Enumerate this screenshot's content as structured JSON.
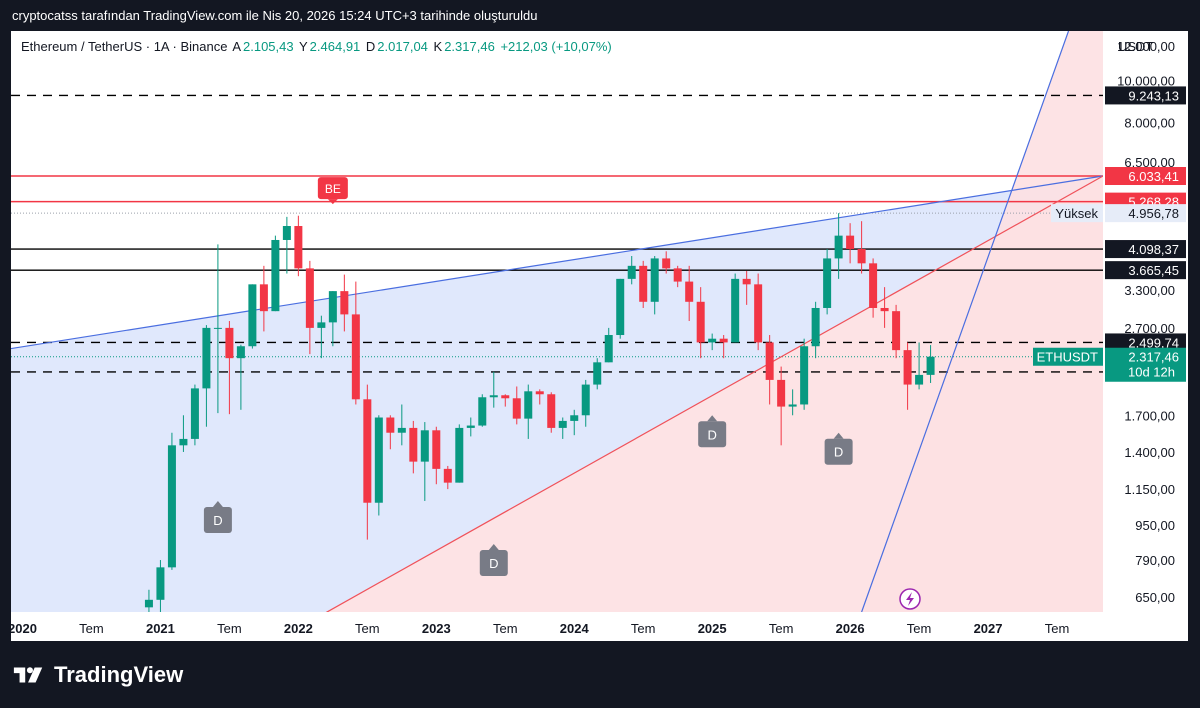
{
  "header": {
    "caption": "cryptocatss tarafından TradingView.com ile Nis 20, 2026 15:24 UTC+3 tarihinde oluşturuldu"
  },
  "legend": {
    "symbol": "Ethereum / TetherUS · 1A · Binance",
    "open_label": "A",
    "open": "2.105,43",
    "high_label": "Y",
    "high": "2.464,91",
    "low_label": "D",
    "low": "2.017,04",
    "close_label": "K",
    "close": "2.317,46",
    "change": "+212,03 (+10,07%)"
  },
  "footer": {
    "brand": "TradingView"
  },
  "colors": {
    "up": "#089981",
    "down": "#f23645",
    "channel_fill": "#dbe4fb",
    "wedge_fill": "#fde0e2",
    "blue_line": "#4a6ee0",
    "red_line": "#f0525a"
  },
  "chart_data": {
    "type": "candlestick",
    "currency": "USDT",
    "scale": "log",
    "ylim": [
      600,
      13000
    ],
    "y_ticks": [
      {
        "v": 12000,
        "label": "12.000,00"
      },
      {
        "v": 10000,
        "label": "10.000,00"
      },
      {
        "v": 8000,
        "label": "8.000,00"
      },
      {
        "v": 6500,
        "label": "6.500,00"
      },
      {
        "v": 3300,
        "label": "3.300,00"
      },
      {
        "v": 2700,
        "label": "2.700,00"
      },
      {
        "v": 1700,
        "label": "1.700,00"
      },
      {
        "v": 1400,
        "label": "1.400,00"
      },
      {
        "v": 1150,
        "label": "1.150,00"
      },
      {
        "v": 950,
        "label": "950,00"
      },
      {
        "v": 790,
        "label": "790,00"
      },
      {
        "v": 650,
        "label": "650,00"
      }
    ],
    "x_ticks": [
      {
        "t": "2020-01",
        "label": "2020"
      },
      {
        "t": "2020-07",
        "label": "Tem"
      },
      {
        "t": "2021-01",
        "label": "2021"
      },
      {
        "t": "2021-07",
        "label": "Tem"
      },
      {
        "t": "2022-01",
        "label": "2022"
      },
      {
        "t": "2022-07",
        "label": "Tem"
      },
      {
        "t": "2023-01",
        "label": "2023"
      },
      {
        "t": "2023-07",
        "label": "Tem"
      },
      {
        "t": "2024-01",
        "label": "2024"
      },
      {
        "t": "2024-07",
        "label": "Tem"
      },
      {
        "t": "2025-01",
        "label": "2025"
      },
      {
        "t": "2025-07",
        "label": "Tem"
      },
      {
        "t": "2026-01",
        "label": "2026"
      },
      {
        "t": "2026-07",
        "label": "Tem"
      },
      {
        "t": "2027-01",
        "label": "2027"
      },
      {
        "t": "2027-07",
        "label": "Tem"
      }
    ],
    "x_range": [
      "2019-12",
      "2027-11"
    ],
    "price_lines": [
      {
        "value": 9243.13,
        "label": "9.243,13",
        "style": "dashed",
        "color": "#000000"
      },
      {
        "value": 6033.41,
        "label": "6.033,41",
        "style": "solid",
        "color": "#f23645"
      },
      {
        "value": 5268.28,
        "label": "5.268,28",
        "style": "solid",
        "color": "#f23645"
      },
      {
        "value": 4098.37,
        "label": "4.098,37",
        "style": "solid",
        "color": "#000000"
      },
      {
        "value": 3665.45,
        "label": "3.665,45",
        "style": "solid",
        "color": "#000000"
      },
      {
        "value": 2499.74,
        "label": "2.499,74",
        "style": "dashed",
        "color": "#000000"
      },
      {
        "value": 2138.38,
        "label": "2.138,38",
        "style": "dashed",
        "color": "#000000"
      }
    ],
    "high_marker": {
      "label": "Yüksek",
      "value": 4956.78,
      "value_label": "4.956,78"
    },
    "last_price": {
      "symbol": "ETHUSDT",
      "value": 2317.46,
      "value_label": "2.317,46",
      "countdown": "10d 12h"
    },
    "markers": [
      {
        "t": "2021-06",
        "label": "D",
        "price": 1080
      },
      {
        "t": "2022-04",
        "label": "BE",
        "price": 5200
      },
      {
        "t": "2023-06",
        "label": "D",
        "price": 860
      },
      {
        "t": "2025-01",
        "label": "D",
        "price": 1700
      },
      {
        "t": "2025-12",
        "label": "D",
        "price": 1550
      }
    ],
    "trendlines": [
      {
        "from": {
          "t": "2019-12",
          "p": 2420
        },
        "to": {
          "t": "2027-11",
          "p": 6033
        },
        "color": "#4a6ee0"
      },
      {
        "from": {
          "t": "2022-03",
          "p": 590
        },
        "to": {
          "t": "2027-11",
          "p": 6033
        },
        "color": "#f0525a"
      },
      {
        "from": {
          "t": "2026-02",
          "p": 600
        },
        "to": {
          "t": "2027-08",
          "p": 13000
        },
        "color": "#4a6ee0"
      }
    ],
    "candles": [
      {
        "t": "2020-12",
        "o": 615,
        "h": 675,
        "l": 560,
        "c": 640
      },
      {
        "t": "2021-01",
        "o": 640,
        "h": 790,
        "l": 570,
        "c": 760
      },
      {
        "t": "2021-02",
        "o": 760,
        "h": 1550,
        "l": 750,
        "c": 1450
      },
      {
        "t": "2021-03",
        "o": 1450,
        "h": 1700,
        "l": 1400,
        "c": 1500
      },
      {
        "t": "2021-04",
        "o": 1500,
        "h": 2000,
        "l": 1450,
        "c": 1960
      },
      {
        "t": "2021-05",
        "o": 1960,
        "h": 2740,
        "l": 1600,
        "c": 2700
      },
      {
        "t": "2021-06",
        "o": 2700,
        "h": 4200,
        "l": 1720,
        "c": 2700
      },
      {
        "t": "2021-07",
        "o": 2700,
        "h": 2800,
        "l": 1710,
        "c": 2300
      },
      {
        "t": "2021-08",
        "o": 2300,
        "h": 2470,
        "l": 1750,
        "c": 2450
      },
      {
        "t": "2021-09",
        "o": 2450,
        "h": 3400,
        "l": 2420,
        "c": 3400
      },
      {
        "t": "2021-10",
        "o": 3400,
        "h": 3750,
        "l": 2650,
        "c": 2950
      },
      {
        "t": "2021-11",
        "o": 2950,
        "h": 4400,
        "l": 2950,
        "c": 4300
      },
      {
        "t": "2021-12",
        "o": 4300,
        "h": 4860,
        "l": 3600,
        "c": 4630
      },
      {
        "t": "2022-01",
        "o": 4630,
        "h": 4890,
        "l": 3550,
        "c": 3700
      },
      {
        "t": "2022-02",
        "o": 3700,
        "h": 3850,
        "l": 2350,
        "c": 2700
      },
      {
        "t": "2022-03",
        "o": 2700,
        "h": 2880,
        "l": 2300,
        "c": 2780
      },
      {
        "t": "2022-04",
        "o": 2780,
        "h": 3280,
        "l": 2450,
        "c": 3280
      },
      {
        "t": "2022-05",
        "o": 3280,
        "h": 3580,
        "l": 2650,
        "c": 2900
      },
      {
        "t": "2022-06",
        "o": 2900,
        "h": 3450,
        "l": 1800,
        "c": 1850
      },
      {
        "t": "2022-07",
        "o": 1850,
        "h": 2000,
        "l": 880,
        "c": 1070
      },
      {
        "t": "2022-08",
        "o": 1070,
        "h": 1700,
        "l": 1000,
        "c": 1680
      },
      {
        "t": "2022-09",
        "o": 1680,
        "h": 1700,
        "l": 1420,
        "c": 1550
      },
      {
        "t": "2022-10",
        "o": 1550,
        "h": 1800,
        "l": 1450,
        "c": 1590
      },
      {
        "t": "2022-11",
        "o": 1590,
        "h": 1650,
        "l": 1250,
        "c": 1330
      },
      {
        "t": "2022-12",
        "o": 1330,
        "h": 1640,
        "l": 1080,
        "c": 1570
      },
      {
        "t": "2023-01",
        "o": 1570,
        "h": 1600,
        "l": 1180,
        "c": 1280
      },
      {
        "t": "2023-02",
        "o": 1280,
        "h": 1300,
        "l": 1150,
        "c": 1190
      },
      {
        "t": "2023-03",
        "o": 1190,
        "h": 1620,
        "l": 1190,
        "c": 1590
      },
      {
        "t": "2023-04",
        "o": 1590,
        "h": 1680,
        "l": 1520,
        "c": 1610
      },
      {
        "t": "2023-05",
        "o": 1610,
        "h": 1900,
        "l": 1600,
        "c": 1870
      },
      {
        "t": "2023-06",
        "o": 1870,
        "h": 2140,
        "l": 1770,
        "c": 1890
      },
      {
        "t": "2023-07",
        "o": 1890,
        "h": 1900,
        "l": 1780,
        "c": 1860
      },
      {
        "t": "2023-08",
        "o": 1860,
        "h": 1980,
        "l": 1620,
        "c": 1670
      },
      {
        "t": "2023-09",
        "o": 1670,
        "h": 2000,
        "l": 1500,
        "c": 1930
      },
      {
        "t": "2023-10",
        "o": 1930,
        "h": 1950,
        "l": 1800,
        "c": 1900
      },
      {
        "t": "2023-11",
        "o": 1900,
        "h": 1920,
        "l": 1550,
        "c": 1590
      },
      {
        "t": "2023-12",
        "o": 1590,
        "h": 1680,
        "l": 1500,
        "c": 1650
      },
      {
        "t": "2024-01",
        "o": 1650,
        "h": 1750,
        "l": 1530,
        "c": 1700
      },
      {
        "t": "2024-02",
        "o": 1700,
        "h": 2050,
        "l": 1600,
        "c": 2000
      },
      {
        "t": "2024-03",
        "o": 2000,
        "h": 2300,
        "l": 1950,
        "c": 2250
      },
      {
        "t": "2024-04",
        "o": 2250,
        "h": 2700,
        "l": 2250,
        "c": 2600
      },
      {
        "t": "2024-05",
        "o": 2600,
        "h": 3500,
        "l": 2550,
        "c": 3500
      },
      {
        "t": "2024-06",
        "o": 3500,
        "h": 3950,
        "l": 3400,
        "c": 3750
      },
      {
        "t": "2024-07",
        "o": 3750,
        "h": 3850,
        "l": 3000,
        "c": 3100
      },
      {
        "t": "2024-08",
        "o": 3100,
        "h": 3950,
        "l": 2900,
        "c": 3900
      },
      {
        "t": "2024-09",
        "o": 3900,
        "h": 4050,
        "l": 3600,
        "c": 3700
      },
      {
        "t": "2024-10",
        "o": 3700,
        "h": 3750,
        "l": 3350,
        "c": 3450
      },
      {
        "t": "2024-11",
        "o": 3450,
        "h": 3750,
        "l": 2800,
        "c": 3100
      },
      {
        "t": "2024-12",
        "o": 3100,
        "h": 3350,
        "l": 2300,
        "c": 2500
      },
      {
        "t": "2025-01",
        "o": 2500,
        "h": 2620,
        "l": 2400,
        "c": 2550
      },
      {
        "t": "2025-02",
        "o": 2550,
        "h": 2600,
        "l": 2300,
        "c": 2500
      },
      {
        "t": "2025-03",
        "o": 2500,
        "h": 3600,
        "l": 2500,
        "c": 3500
      },
      {
        "t": "2025-04",
        "o": 3500,
        "h": 3650,
        "l": 3050,
        "c": 3400
      },
      {
        "t": "2025-05",
        "o": 3400,
        "h": 3600,
        "l": 2400,
        "c": 2500
      },
      {
        "t": "2025-06",
        "o": 2500,
        "h": 2600,
        "l": 1800,
        "c": 2050
      },
      {
        "t": "2025-07",
        "o": 2050,
        "h": 2200,
        "l": 1450,
        "c": 1780
      },
      {
        "t": "2025-08",
        "o": 1780,
        "h": 1950,
        "l": 1700,
        "c": 1800
      },
      {
        "t": "2025-09",
        "o": 1800,
        "h": 2550,
        "l": 1750,
        "c": 2450
      },
      {
        "t": "2025-10",
        "o": 2450,
        "h": 3100,
        "l": 2300,
        "c": 3000
      },
      {
        "t": "2025-11",
        "o": 3000,
        "h": 4100,
        "l": 2900,
        "c": 3900
      },
      {
        "t": "2025-12",
        "o": 3900,
        "h": 4956,
        "l": 3500,
        "c": 4400
      },
      {
        "t": "2026-01",
        "o": 4400,
        "h": 4700,
        "l": 3800,
        "c": 4100
      },
      {
        "t": "2026-02",
        "o": 4100,
        "h": 4750,
        "l": 3600,
        "c": 3800
      },
      {
        "t": "2026-03",
        "o": 3800,
        "h": 3900,
        "l": 2850,
        "c": 3000
      },
      {
        "t": "2026-04",
        "o": 3000,
        "h": 3350,
        "l": 2700,
        "c": 2950
      },
      {
        "t": "2026-05",
        "o": 2950,
        "h": 3050,
        "l": 2300,
        "c": 2400
      },
      {
        "t": "2026-06",
        "o": 2400,
        "h": 2500,
        "l": 1750,
        "c": 2000
      },
      {
        "t": "2026-07",
        "o": 2000,
        "h": 2500,
        "l": 1950,
        "c": 2105
      },
      {
        "t": "2026-08",
        "o": 2105.43,
        "h": 2464.91,
        "l": 2017.04,
        "c": 2317.46
      }
    ]
  }
}
